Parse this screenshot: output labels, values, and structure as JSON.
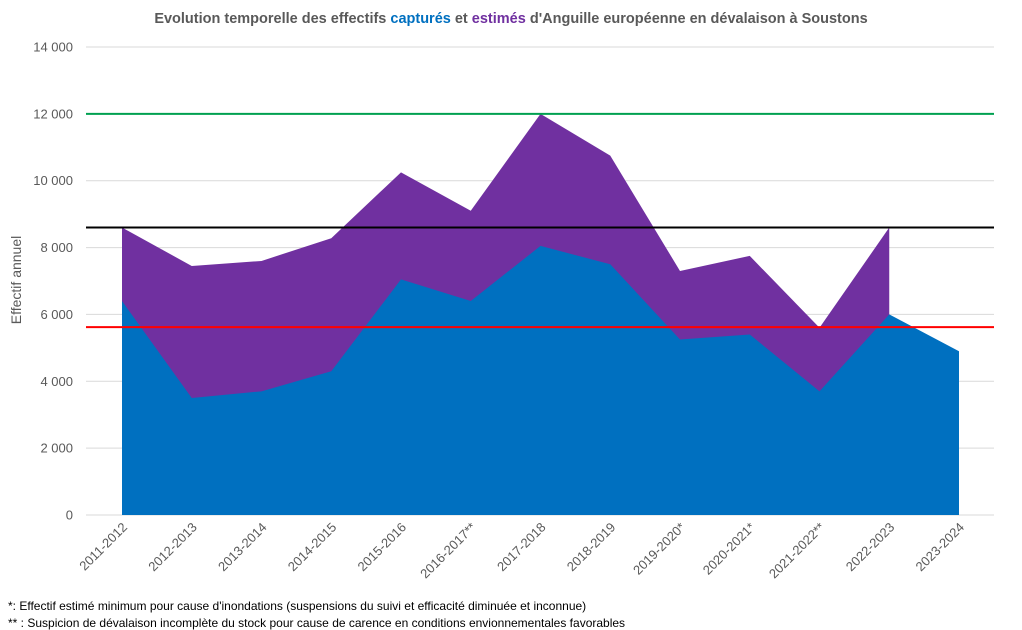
{
  "title": {
    "part1": "Evolution temporelle des effectifs ",
    "captured": "capturés",
    "part2": " et ",
    "estimated": "estimés",
    "part3": " d'Anguille européenne en dévalaison à Soustons"
  },
  "footnotes": {
    "note1": "*: Effectif estimé minimum pour cause d'inondations (suspensions du suivi et efficacité diminuée et inconnue)",
    "note2": "** : Suspicion de dévalaison incomplète du stock pour cause de carence en conditions envionnementales favorables"
  },
  "chart_data": {
    "type": "area",
    "ylabel": "Effectif annuel",
    "ylim": [
      0,
      14000
    ],
    "yticks": [
      0,
      2000,
      4000,
      6000,
      8000,
      10000,
      12000,
      14000
    ],
    "ytick_labels": [
      "0",
      "2 000",
      "4 000",
      "6 000",
      "8 000",
      "10 000",
      "12 000",
      "14 000"
    ],
    "grid": true,
    "legend": "none",
    "categories": [
      "2011-2012",
      "2012-2013",
      "2013-2014",
      "2014-2015",
      "2015-2016",
      "2016-2017**",
      "2017-2018",
      "2018-2019",
      "2019-2020*",
      "2020-2021*",
      "2021-2022**",
      "2022-2023",
      "2023-2024"
    ],
    "series": [
      {
        "key": "estimated",
        "color": "#7030A0",
        "values": [
          8600,
          7450,
          7600,
          8280,
          10250,
          9100,
          12000,
          10750,
          7300,
          7750,
          5600,
          8600,
          null
        ]
      },
      {
        "key": "captured",
        "color": "#0070C0",
        "values": [
          6400,
          3500,
          3700,
          4300,
          7050,
          6400,
          8050,
          7500,
          5250,
          5400,
          3700,
          6000,
          4900
        ]
      }
    ],
    "reference_lines": [
      {
        "color": "#00A050",
        "value": 12000
      },
      {
        "color": "#000000",
        "value": 8600
      },
      {
        "color": "#FF0000",
        "value": 5620
      }
    ]
  }
}
